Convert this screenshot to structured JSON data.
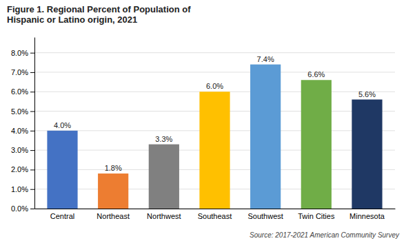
{
  "chart_data": {
    "type": "bar",
    "title": "Figure 1. Regional Percent of Population of\nHispanic or Latino origin, 2021",
    "categories": [
      "Central",
      "Northeast",
      "Northwest",
      "Southeast",
      "Southwest",
      "Twin Cities",
      "Minnesota"
    ],
    "values": [
      4.0,
      1.8,
      3.3,
      6.0,
      7.4,
      6.6,
      5.6
    ],
    "value_labels": [
      "4.0%",
      "1.8%",
      "3.3%",
      "6.0%",
      "7.4%",
      "6.6%",
      "5.6%"
    ],
    "colors": [
      "#4472C4",
      "#ED7D31",
      "#808080",
      "#FFC000",
      "#5B9BD5",
      "#70AD47",
      "#1F3864"
    ],
    "ylim": [
      0,
      8.8
    ],
    "yticks": [
      {
        "value": 0.0,
        "label": "0.0%"
      },
      {
        "value": 1.0,
        "label": "1.0%"
      },
      {
        "value": 2.0,
        "label": "2.0%"
      },
      {
        "value": 3.0,
        "label": "3.0%"
      },
      {
        "value": 4.0,
        "label": "4.0%"
      },
      {
        "value": 5.0,
        "label": "5.0%"
      },
      {
        "value": 6.0,
        "label": "6.0%"
      },
      {
        "value": 7.0,
        "label": "7.0%"
      },
      {
        "value": 8.0,
        "label": "8.0%"
      }
    ],
    "grid": true,
    "data_labels": true,
    "annotations": [
      "Source: 2017-2021 American Community Survey"
    ]
  }
}
